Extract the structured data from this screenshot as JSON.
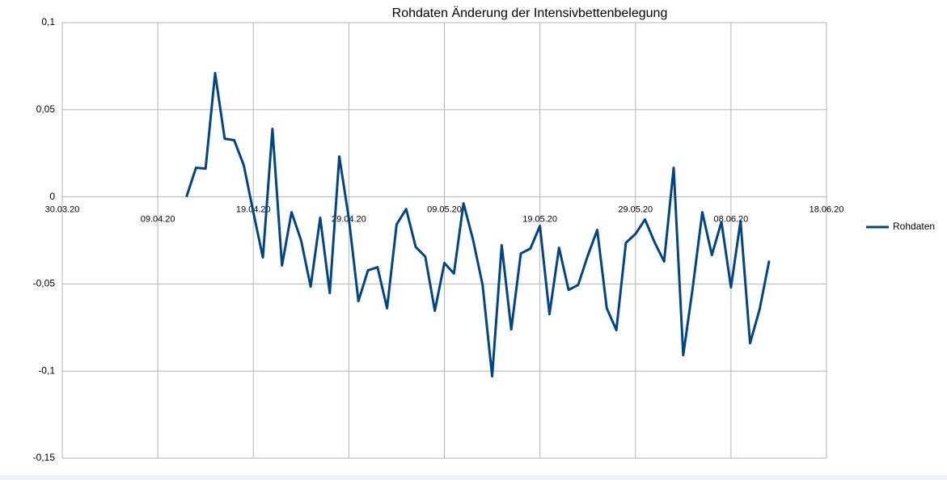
{
  "chart_data": {
    "type": "line",
    "title": "Rohdaten Änderung der Intensivbettenbelegung",
    "x": [
      "12.04.20",
      "13.04.20",
      "14.04.20",
      "15.04.20",
      "16.04.20",
      "17.04.20",
      "18.04.20",
      "19.04.20",
      "20.04.20",
      "21.04.20",
      "22.04.20",
      "23.04.20",
      "24.04.20",
      "25.04.20",
      "26.04.20",
      "27.04.20",
      "28.04.20",
      "29.04.20",
      "30.04.20",
      "01.05.20",
      "02.05.20",
      "03.05.20",
      "04.05.20",
      "05.05.20",
      "06.05.20",
      "07.05.20",
      "08.05.20",
      "09.05.20",
      "10.05.20",
      "11.05.20",
      "12.05.20",
      "13.05.20",
      "14.05.20",
      "15.05.20",
      "16.05.20",
      "17.05.20",
      "18.05.20",
      "19.05.20",
      "20.05.20",
      "21.05.20",
      "22.05.20",
      "23.05.20",
      "24.05.20",
      "25.05.20",
      "26.05.20",
      "27.05.20",
      "28.05.20",
      "29.05.20",
      "30.05.20",
      "31.05.20",
      "01.06.20",
      "02.06.20",
      "03.06.20",
      "04.06.20",
      "05.06.20",
      "06.06.20",
      "07.06.20",
      "08.06.20",
      "09.06.20",
      "10.06.20",
      "11.06.20",
      "12.06.20"
    ],
    "series": [
      {
        "name": "Rohdaten",
        "color": "#004586",
        "values": [
          0,
          0.0167,
          0.0162,
          0.071,
          0.0334,
          0.0325,
          0.0181,
          -0.0088,
          -0.0348,
          0.039,
          -0.0394,
          -0.0088,
          -0.025,
          -0.0515,
          -0.012,
          -0.0552,
          0.0232,
          -0.0125,
          -0.0598,
          -0.0422,
          -0.0404,
          -0.064,
          -0.0158,
          -0.007,
          -0.0288,
          -0.0343,
          -0.0654,
          -0.038,
          -0.044,
          -0.0037,
          -0.0246,
          -0.0506,
          -0.103,
          -0.0278,
          -0.0761,
          -0.0325,
          -0.0297,
          -0.0167,
          -0.0673,
          -0.0292,
          -0.0534,
          -0.0506,
          -0.0339,
          -0.019,
          -0.064,
          -0.0765,
          -0.0264,
          -0.0213,
          -0.013,
          -0.026,
          -0.0371,
          0.0167,
          -0.0909,
          -0.052,
          -0.0088,
          -0.0334,
          -0.0144,
          -0.052,
          -0.0139,
          -0.084,
          -0.0645,
          -0.0366
        ]
      }
    ],
    "xlim": [
      "30.03.20",
      "18.06.20"
    ],
    "xticks": [
      "30.03.20",
      "09.04.20",
      "19.04.20",
      "29.04.20",
      "09.05.20",
      "19.05.20",
      "29.05.20",
      "08.06.20",
      "18.06.20"
    ],
    "ylim": [
      -0.15,
      0.1
    ],
    "yticks": [
      {
        "value": -0.15,
        "label": "-0,15"
      },
      {
        "value": -0.1,
        "label": "-0,1"
      },
      {
        "value": -0.05,
        "label": "-0,05"
      },
      0,
      {
        "value": 0.05,
        "label": "0,05"
      },
      {
        "value": 0.1,
        "label": "0,1"
      }
    ],
    "grid": true,
    "legend": "right"
  }
}
